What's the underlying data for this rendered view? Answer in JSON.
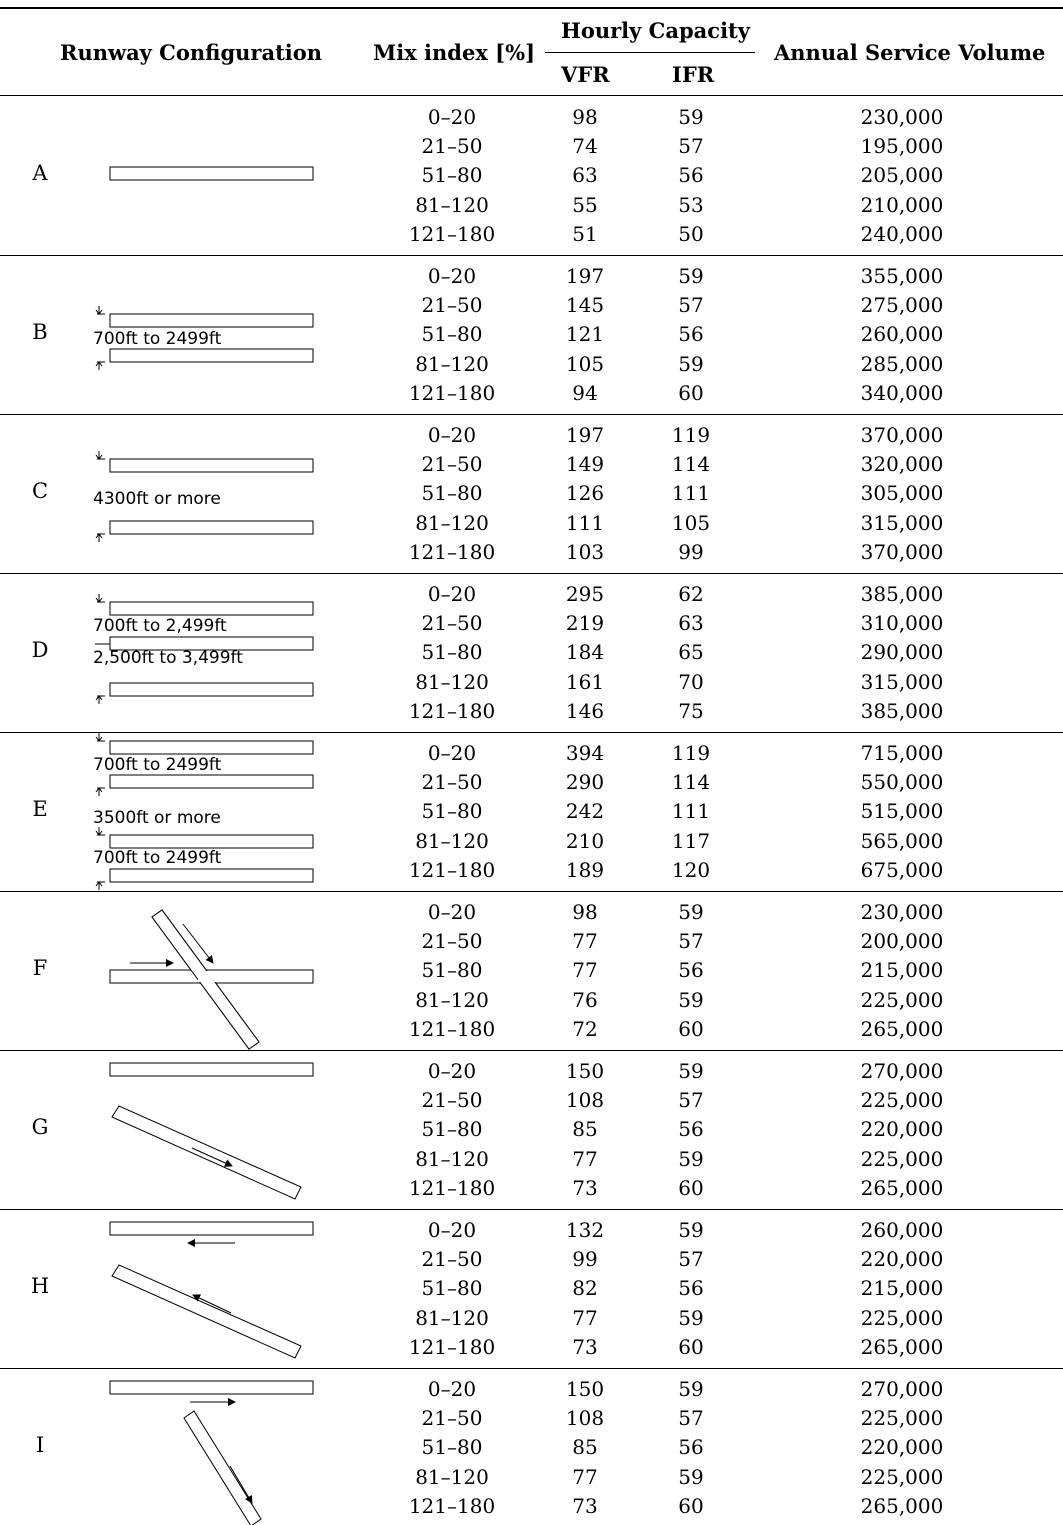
{
  "header": {
    "runway_configuration": "Runway Configuration",
    "mix_index": "Mix index [%]",
    "hourly_capacity": "Hourly Capacity",
    "vfr": "VFR",
    "ifr": "IFR",
    "annual_service_volume": "Annual Service Volume"
  },
  "groups": [
    {
      "letter": "A",
      "labels": [],
      "rows": [
        [
          "0–20",
          "98",
          "59",
          "230,000"
        ],
        [
          "21–50",
          "74",
          "57",
          "195,000"
        ],
        [
          "51–80",
          "63",
          "56",
          "205,000"
        ],
        [
          "81–120",
          "55",
          "53",
          "210,000"
        ],
        [
          "121–180",
          "51",
          "50",
          "240,000"
        ]
      ]
    },
    {
      "letter": "B",
      "labels": [
        "700ft to 2499ft"
      ],
      "rows": [
        [
          "0–20",
          "197",
          "59",
          "355,000"
        ],
        [
          "21–50",
          "145",
          "57",
          "275,000"
        ],
        [
          "51–80",
          "121",
          "56",
          "260,000"
        ],
        [
          "81–120",
          "105",
          "59",
          "285,000"
        ],
        [
          "121–180",
          "94",
          "60",
          "340,000"
        ]
      ]
    },
    {
      "letter": "C",
      "labels": [
        "4300ft or more"
      ],
      "rows": [
        [
          "0–20",
          "197",
          "119",
          "370,000"
        ],
        [
          "21–50",
          "149",
          "114",
          "320,000"
        ],
        [
          "51–80",
          "126",
          "111",
          "305,000"
        ],
        [
          "81–120",
          "111",
          "105",
          "315,000"
        ],
        [
          "121–180",
          "103",
          "99",
          "370,000"
        ]
      ]
    },
    {
      "letter": "D",
      "labels": [
        "700ft to 2,499ft",
        "2,500ft to 3,499ft"
      ],
      "rows": [
        [
          "0–20",
          "295",
          "62",
          "385,000"
        ],
        [
          "21–50",
          "219",
          "63",
          "310,000"
        ],
        [
          "51–80",
          "184",
          "65",
          "290,000"
        ],
        [
          "81–120",
          "161",
          "70",
          "315,000"
        ],
        [
          "121–180",
          "146",
          "75",
          "385,000"
        ]
      ]
    },
    {
      "letter": "E",
      "labels": [
        "700ft to 2499ft",
        "3500ft or more",
        "700ft to 2499ft"
      ],
      "rows": [
        [
          "0–20",
          "394",
          "119",
          "715,000"
        ],
        [
          "21–50",
          "290",
          "114",
          "550,000"
        ],
        [
          "51–80",
          "242",
          "111",
          "515,000"
        ],
        [
          "81–120",
          "210",
          "117",
          "565,000"
        ],
        [
          "121–180",
          "189",
          "120",
          "675,000"
        ]
      ]
    },
    {
      "letter": "F",
      "labels": [],
      "rows": [
        [
          "0–20",
          "98",
          "59",
          "230,000"
        ],
        [
          "21–50",
          "77",
          "57",
          "200,000"
        ],
        [
          "51–80",
          "77",
          "56",
          "215,000"
        ],
        [
          "81–120",
          "76",
          "59",
          "225,000"
        ],
        [
          "121–180",
          "72",
          "60",
          "265,000"
        ]
      ]
    },
    {
      "letter": "G",
      "labels": [],
      "rows": [
        [
          "0–20",
          "150",
          "59",
          "270,000"
        ],
        [
          "21–50",
          "108",
          "57",
          "225,000"
        ],
        [
          "51–80",
          "85",
          "56",
          "220,000"
        ],
        [
          "81–120",
          "77",
          "59",
          "225,000"
        ],
        [
          "121–180",
          "73",
          "60",
          "265,000"
        ]
      ]
    },
    {
      "letter": "H",
      "labels": [],
      "rows": [
        [
          "0–20",
          "132",
          "59",
          "260,000"
        ],
        [
          "21–50",
          "99",
          "57",
          "220,000"
        ],
        [
          "51–80",
          "82",
          "56",
          "215,000"
        ],
        [
          "81–120",
          "77",
          "59",
          "225,000"
        ],
        [
          "121–180",
          "73",
          "60",
          "265,000"
        ]
      ]
    },
    {
      "letter": "I",
      "labels": [],
      "rows": [
        [
          "0–20",
          "150",
          "59",
          "270,000"
        ],
        [
          "21–50",
          "108",
          "57",
          "225,000"
        ],
        [
          "51–80",
          "85",
          "56",
          "220,000"
        ],
        [
          "81–120",
          "77",
          "59",
          "225,000"
        ],
        [
          "121–180",
          "73",
          "60",
          "265,000"
        ]
      ]
    }
  ]
}
